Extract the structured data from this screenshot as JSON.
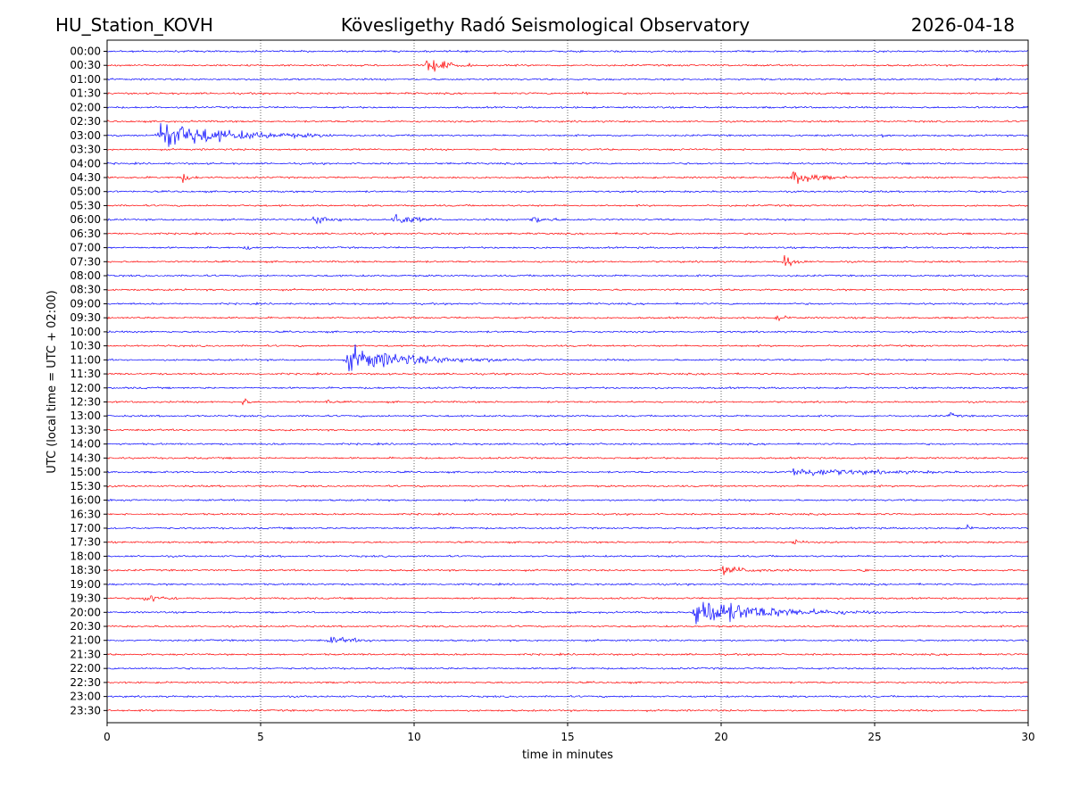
{
  "header": {
    "station": "HU_Station_KOVH",
    "observatory": "Kövesligethy Radó Seismological Observatory",
    "date": "2026-04-18"
  },
  "chart_data": {
    "type": "line",
    "title": "Kövesligethy Radó Seismological Observatory",
    "xlabel": "time in minutes",
    "ylabel": "UTC (local time = UTC + 02:00)",
    "xlim": [
      0,
      30
    ],
    "x_ticks": [
      "0",
      "5",
      "10",
      "15",
      "20",
      "25",
      "30"
    ],
    "x_tick_values": [
      0,
      5,
      10,
      15,
      20,
      25,
      30
    ],
    "grid": "vertical dotted at each x tick",
    "row_labels": [
      "00:00",
      "00:30",
      "01:00",
      "01:30",
      "02:00",
      "02:30",
      "03:00",
      "03:30",
      "04:00",
      "04:30",
      "05:00",
      "05:30",
      "06:00",
      "06:30",
      "07:00",
      "07:30",
      "08:00",
      "08:30",
      "09:00",
      "09:30",
      "10:00",
      "10:30",
      "11:00",
      "11:30",
      "12:00",
      "12:30",
      "13:00",
      "13:30",
      "14:00",
      "14:30",
      "15:00",
      "15:30",
      "16:00",
      "16:30",
      "17:00",
      "17:30",
      "18:00",
      "18:30",
      "19:00",
      "19:30",
      "20:00",
      "20:30",
      "21:00",
      "21:30",
      "22:00",
      "22:30",
      "23:00",
      "23:30"
    ],
    "row_colors": [
      "#0000ff",
      "#ff0000"
    ],
    "events": [
      {
        "row": "00:30",
        "start": 10.4,
        "duration": 1.6,
        "amplitude": 1.0
      },
      {
        "row": "01:30",
        "start": 15.5,
        "duration": 0.3,
        "amplitude": 0.25
      },
      {
        "row": "03:00",
        "start": 1.6,
        "duration": 5.8,
        "amplitude": 1.8
      },
      {
        "row": "03:00",
        "start": 25.2,
        "duration": 0.5,
        "amplitude": 0.25
      },
      {
        "row": "04:30",
        "start": 2.4,
        "duration": 0.6,
        "amplitude": 0.5
      },
      {
        "row": "04:30",
        "start": 22.3,
        "duration": 1.8,
        "amplitude": 1.0
      },
      {
        "row": "06:00",
        "start": 6.7,
        "duration": 1.5,
        "amplitude": 0.55
      },
      {
        "row": "06:00",
        "start": 9.3,
        "duration": 1.6,
        "amplitude": 0.8
      },
      {
        "row": "06:00",
        "start": 13.8,
        "duration": 1.2,
        "amplitude": 0.45
      },
      {
        "row": "07:00",
        "start": 4.5,
        "duration": 0.3,
        "amplitude": 0.3
      },
      {
        "row": "07:30",
        "start": 22.0,
        "duration": 0.8,
        "amplitude": 0.9
      },
      {
        "row": "09:30",
        "start": 21.8,
        "duration": 0.6,
        "amplitude": 0.3
      },
      {
        "row": "11:00",
        "start": 7.8,
        "duration": 6.0,
        "amplitude": 1.4
      },
      {
        "row": "12:30",
        "start": 4.4,
        "duration": 0.3,
        "amplitude": 0.5
      },
      {
        "row": "12:30",
        "start": 7.1,
        "duration": 0.3,
        "amplitude": 0.25
      },
      {
        "row": "13:00",
        "start": 27.4,
        "duration": 0.5,
        "amplitude": 0.3
      },
      {
        "row": "15:00",
        "start": 22.2,
        "duration": 6.5,
        "amplitude": 0.5
      },
      {
        "row": "17:00",
        "start": 27.9,
        "duration": 0.5,
        "amplitude": 0.3
      },
      {
        "row": "17:30",
        "start": 22.3,
        "duration": 0.5,
        "amplitude": 0.4
      },
      {
        "row": "18:30",
        "start": 20.0,
        "duration": 2.3,
        "amplitude": 0.5
      },
      {
        "row": "18:30",
        "start": 24.6,
        "duration": 0.3,
        "amplitude": 0.2
      },
      {
        "row": "19:30",
        "start": 1.2,
        "duration": 1.5,
        "amplitude": 0.5
      },
      {
        "row": "20:00",
        "start": 19.1,
        "duration": 6.0,
        "amplitude": 1.8
      },
      {
        "row": "21:00",
        "start": 7.2,
        "duration": 2.4,
        "amplitude": 0.35
      },
      {
        "row": "23:30",
        "start": 28.0,
        "duration": 0.5,
        "amplitude": 0.15
      }
    ]
  }
}
